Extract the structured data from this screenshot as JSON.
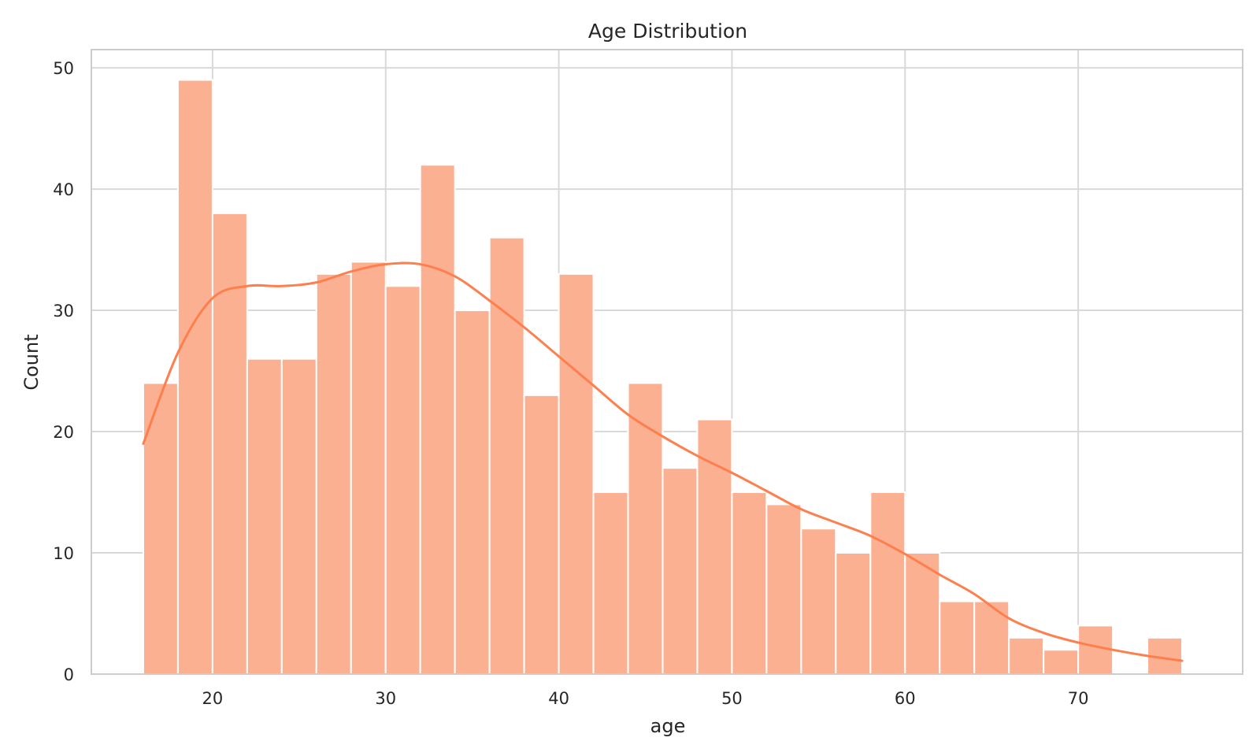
{
  "chart_data": {
    "type": "bar",
    "title": "Age Distribution",
    "xlabel": "age",
    "ylabel": "Count",
    "xlim": [
      13,
      79.5
    ],
    "ylim": [
      0,
      51.5
    ],
    "grid": true,
    "x_ticks": [
      20,
      30,
      40,
      50,
      60,
      70
    ],
    "y_ticks": [
      0,
      10,
      20,
      30,
      40,
      50
    ],
    "bins": [
      {
        "x0": 16,
        "x1": 18,
        "count": 24
      },
      {
        "x0": 18,
        "x1": 20,
        "count": 49
      },
      {
        "x0": 20,
        "x1": 22,
        "count": 38
      },
      {
        "x0": 22,
        "x1": 24,
        "count": 26
      },
      {
        "x0": 24,
        "x1": 26,
        "count": 26
      },
      {
        "x0": 26,
        "x1": 28,
        "count": 33
      },
      {
        "x0": 28,
        "x1": 30,
        "count": 34
      },
      {
        "x0": 30,
        "x1": 32,
        "count": 32
      },
      {
        "x0": 32,
        "x1": 34,
        "count": 42
      },
      {
        "x0": 34,
        "x1": 36,
        "count": 30
      },
      {
        "x0": 36,
        "x1": 38,
        "count": 36
      },
      {
        "x0": 38,
        "x1": 40,
        "count": 23
      },
      {
        "x0": 40,
        "x1": 42,
        "count": 33
      },
      {
        "x0": 42,
        "x1": 44,
        "count": 15
      },
      {
        "x0": 44,
        "x1": 46,
        "count": 24
      },
      {
        "x0": 46,
        "x1": 48,
        "count": 17
      },
      {
        "x0": 48,
        "x1": 50,
        "count": 21
      },
      {
        "x0": 50,
        "x1": 52,
        "count": 15
      },
      {
        "x0": 52,
        "x1": 54,
        "count": 14
      },
      {
        "x0": 54,
        "x1": 56,
        "count": 12
      },
      {
        "x0": 56,
        "x1": 58,
        "count": 10
      },
      {
        "x0": 58,
        "x1": 60,
        "count": 15
      },
      {
        "x0": 60,
        "x1": 62,
        "count": 10
      },
      {
        "x0": 62,
        "x1": 64,
        "count": 6
      },
      {
        "x0": 64,
        "x1": 66,
        "count": 6
      },
      {
        "x0": 66,
        "x1": 68,
        "count": 3
      },
      {
        "x0": 68,
        "x1": 70,
        "count": 2
      },
      {
        "x0": 70,
        "x1": 72,
        "count": 4
      },
      {
        "x0": 72,
        "x1": 74,
        "count": 0
      },
      {
        "x0": 74,
        "x1": 76,
        "count": 3
      }
    ],
    "kde": {
      "x": [
        16,
        18,
        20,
        22,
        24,
        26,
        28,
        30,
        32,
        34,
        36,
        38,
        40,
        42,
        44,
        46,
        48,
        50,
        52,
        54,
        56,
        58,
        60,
        62,
        64,
        66,
        68,
        70,
        72,
        74,
        76
      ],
      "y": [
        19,
        26.5,
        31,
        32,
        32,
        32.3,
        33.2,
        33.8,
        33.8,
        32.8,
        30.8,
        28.6,
        26.2,
        23.8,
        21.4,
        19.6,
        18,
        16.6,
        15.1,
        13.6,
        12.5,
        11.4,
        9.9,
        8.2,
        6.6,
        4.6,
        3.4,
        2.6,
        2.0,
        1.5,
        1.1
      ]
    },
    "colors": {
      "bar_fill": "#fcb092",
      "bar_edge": "#ffffff",
      "kde_line": "#fe7f4d",
      "grid": "#d9d9d9",
      "spine": "#cccccc",
      "text": "#262626"
    }
  }
}
